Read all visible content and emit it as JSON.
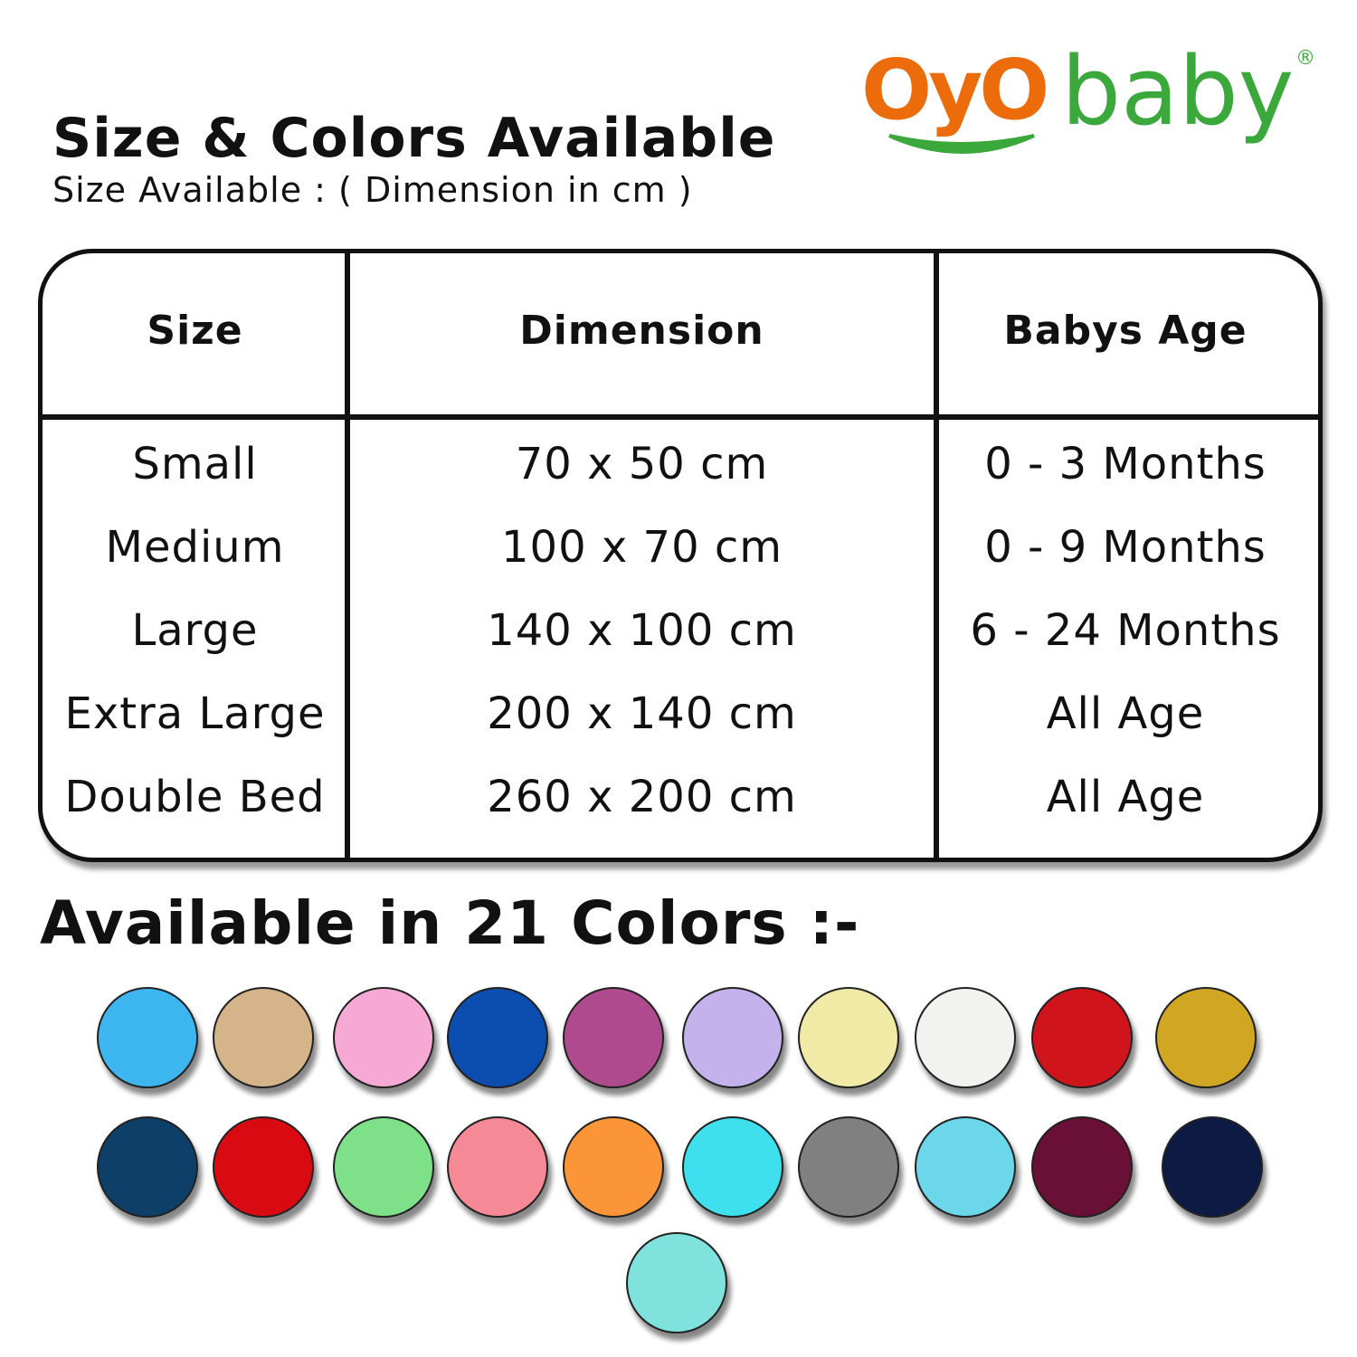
{
  "header": {
    "title": "Size & Colors Available",
    "subtitle": "Size Available : ( Dimension in cm )"
  },
  "logo": {
    "part1": "OyO",
    "part2": "baby",
    "reg": "®",
    "orange": "#ec6c0c",
    "green": "#3aa83a"
  },
  "table": {
    "headers": [
      "Size",
      "Dimension",
      "Babys Age"
    ],
    "rows": [
      [
        "Small",
        "70 x 50 cm",
        "0 - 3 Months"
      ],
      [
        "Medium",
        "100 x 70 cm",
        "0 - 9 Months"
      ],
      [
        "Large",
        "140 x 100 cm",
        "6 - 24 Months"
      ],
      [
        "Extra Large",
        "200 x 140 cm",
        "All  Age"
      ],
      [
        "Double Bed",
        "260 x 200 cm",
        "All  Age"
      ]
    ]
  },
  "colors": {
    "title": "Available in 21 Colors :-",
    "swatches": [
      "#3db5ee",
      "#d5b48a",
      "#f5a9d4",
      "#0b4eb0",
      "#b04a8e",
      "#c4b2ec",
      "#f0eaa6",
      "#f2f2ee",
      "#d0141c",
      "#d0a622",
      "#0e3f68",
      "#da0a12",
      "#7fe08a",
      "#f58a96",
      "#fb9538",
      "#3fe0ee",
      "#808080",
      "#6cd6ea",
      "#6a0f36",
      "#0c1a44",
      "#80e2dc"
    ]
  }
}
